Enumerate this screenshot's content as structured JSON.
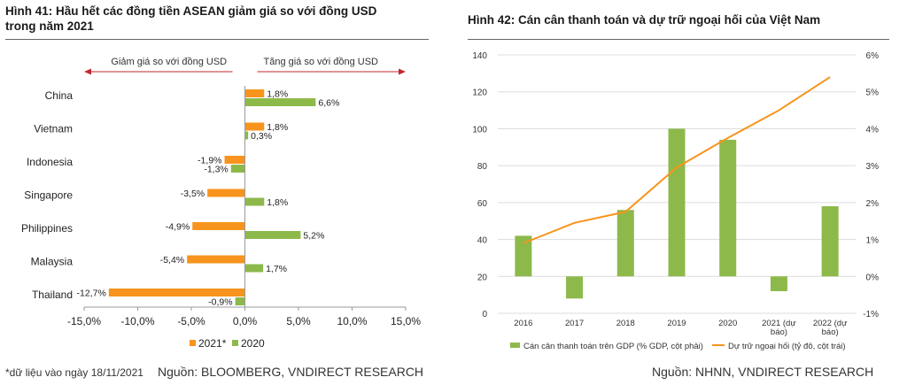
{
  "left": {
    "title_line1": "Hình 41: Hầu hết các đồng tiền ASEAN giảm giá so với đồng USD",
    "title_line2": "trong năm 2021",
    "footnote": "*dữ liệu vào ngày 18/11/2021",
    "source": "Nguồn: BLOOMBERG, VNDIRECT RESEARCH"
  },
  "right": {
    "title": "Hình 42: Cán cân thanh toán và dự trữ ngoại hối của Việt Nam",
    "source": "Nguồn: NHNN, VNDIRECT RESEARCH"
  },
  "colors": {
    "orange": "#F7941D",
    "green": "#8DB94B",
    "arrow": "#C0282D"
  },
  "chart_data": [
    {
      "type": "bar",
      "orientation": "horizontal",
      "arrow_left_label": "Giảm giá so với đồng USD",
      "arrow_right_label": "Tăng giá so với đồng USD",
      "categories": [
        "China",
        "Vietnam",
        "Indonesia",
        "Singapore",
        "Philippines",
        "Malaysia",
        "Thailand"
      ],
      "series": [
        {
          "name": "2021*",
          "values": [
            1.8,
            1.8,
            -1.9,
            -3.5,
            -4.9,
            -5.4,
            -12.7
          ],
          "labels": [
            "1,8%",
            "1,8%",
            "-1,9%",
            "-3,5%",
            "-4,9%",
            "-5,4%",
            "-12,7%"
          ]
        },
        {
          "name": "2020",
          "values": [
            6.6,
            0.3,
            -1.3,
            1.8,
            5.2,
            1.7,
            -0.9
          ],
          "labels": [
            "6,6%",
            "0,3%",
            "-1,3%",
            "1,8%",
            "5,2%",
            "1,7%",
            "-0,9%"
          ]
        }
      ],
      "xlim": [
        -15,
        15
      ],
      "xticks": [
        -15,
        -10,
        -5,
        0,
        5,
        10,
        15
      ],
      "xtick_labels": [
        "-15,0%",
        "-10,0%",
        "-5,0%",
        "0,0%",
        "5,0%",
        "10,0%",
        "15,0%"
      ],
      "legend": "bottom"
    },
    {
      "type": "bar+line",
      "categories": [
        "2016",
        "2017",
        "2018",
        "2019",
        "2020",
        "2021 (dự báo)",
        "2022 (dự báo)"
      ],
      "category_lines": [
        [
          "2016"
        ],
        [
          "2017"
        ],
        [
          "2018"
        ],
        [
          "2019"
        ],
        [
          "2020"
        ],
        [
          "2021 (dự",
          "báo)"
        ],
        [
          "2022 (dự",
          "báo)"
        ]
      ],
      "bars": {
        "name": "Cán cân thanh toán trên GDP (% GDP, cột phải)",
        "axis": "right",
        "values": [
          1.1,
          -0.6,
          1.8,
          4.0,
          3.7,
          -0.4,
          1.9
        ]
      },
      "line": {
        "name": "Dự trữ ngoại hối (tỷ đô, cột trái)",
        "axis": "left",
        "values": [
          38,
          49,
          55,
          79,
          95,
          110,
          128
        ]
      },
      "ylim_left": [
        0,
        140
      ],
      "yticks_left": [
        0,
        20,
        40,
        60,
        80,
        100,
        120,
        140
      ],
      "ylim_right": [
        -1,
        6
      ],
      "yticks_right": [
        -1,
        0,
        1,
        2,
        3,
        4,
        5,
        6
      ],
      "ytick_labels_right": [
        "-1%",
        "0%",
        "1%",
        "2%",
        "3%",
        "4%",
        "5%",
        "6%"
      ],
      "grid": true,
      "legend": "bottom"
    }
  ]
}
